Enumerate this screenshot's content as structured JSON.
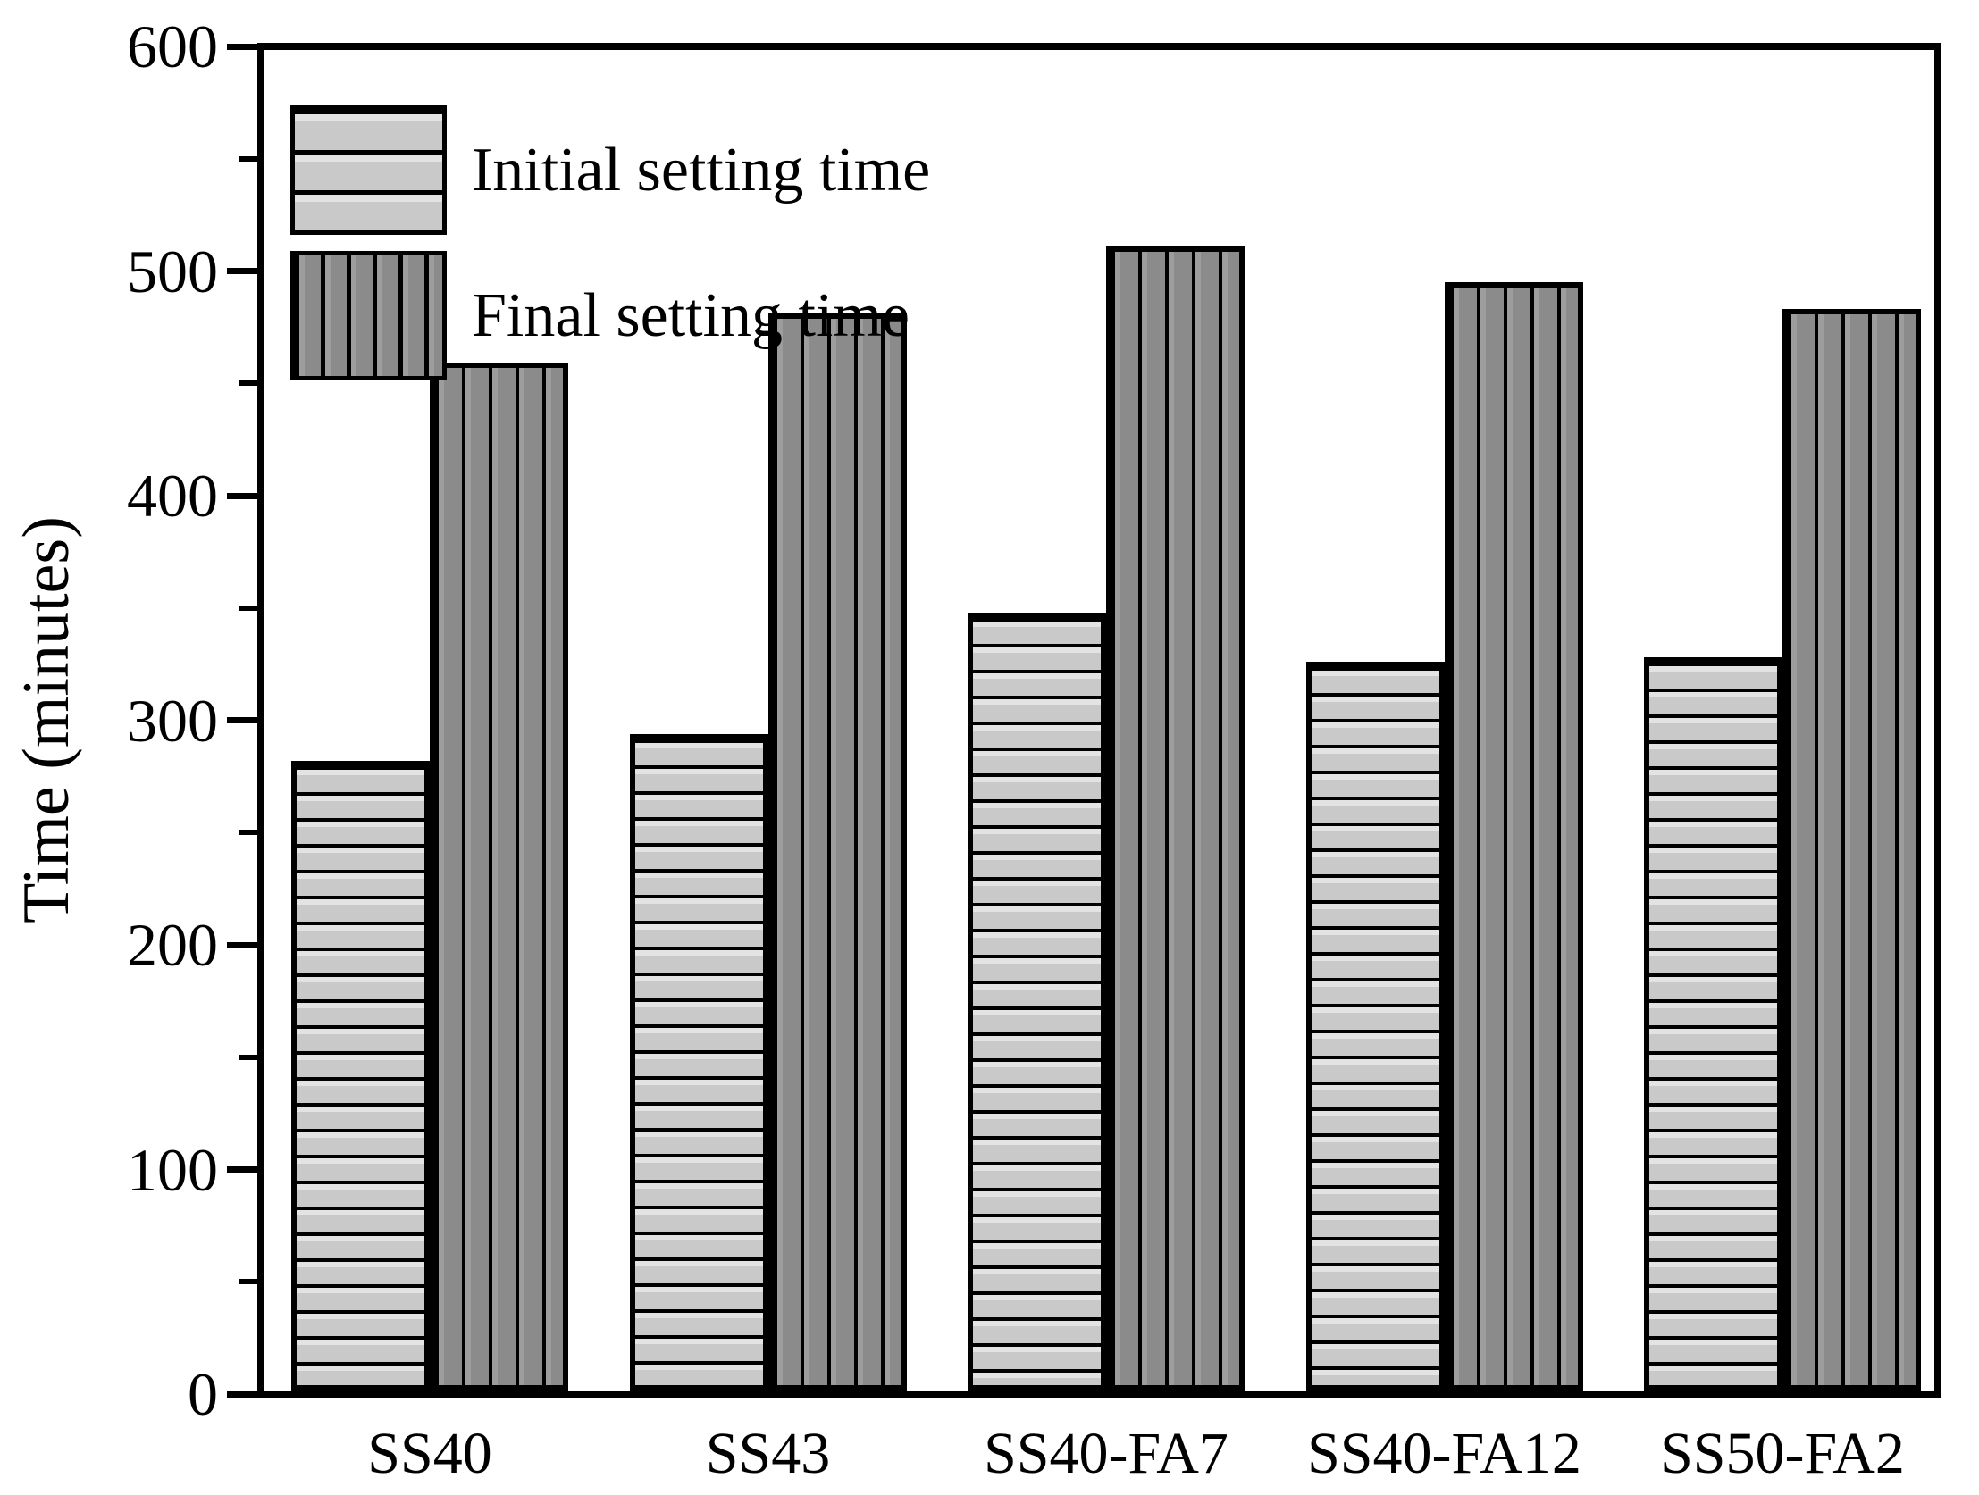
{
  "chart_data": {
    "type": "bar",
    "title": "",
    "xlabel": "",
    "ylabel": "Time (minutes)",
    "categories": [
      "SS40",
      "SS43",
      "SS40-FA7",
      "SS40-FA12",
      "SS50-FA2"
    ],
    "series": [
      {
        "name": "Initial setting time",
        "values": [
          282,
          294,
          348,
          326,
          328
        ],
        "fill": "#c9c9c9",
        "hatch": "horizontal"
      },
      {
        "name": "Final setting time",
        "values": [
          460,
          482,
          512,
          496,
          484
        ],
        "fill": "#8b8b8b",
        "hatch": "vertical"
      }
    ],
    "ylim": [
      0,
      600
    ],
    "yticks": [
      0,
      100,
      200,
      300,
      400,
      500,
      600
    ],
    "minor_tick_step": 50,
    "grid": false,
    "legend_position": "top-left",
    "axis_color": "#000000",
    "background": "#ffffff"
  }
}
